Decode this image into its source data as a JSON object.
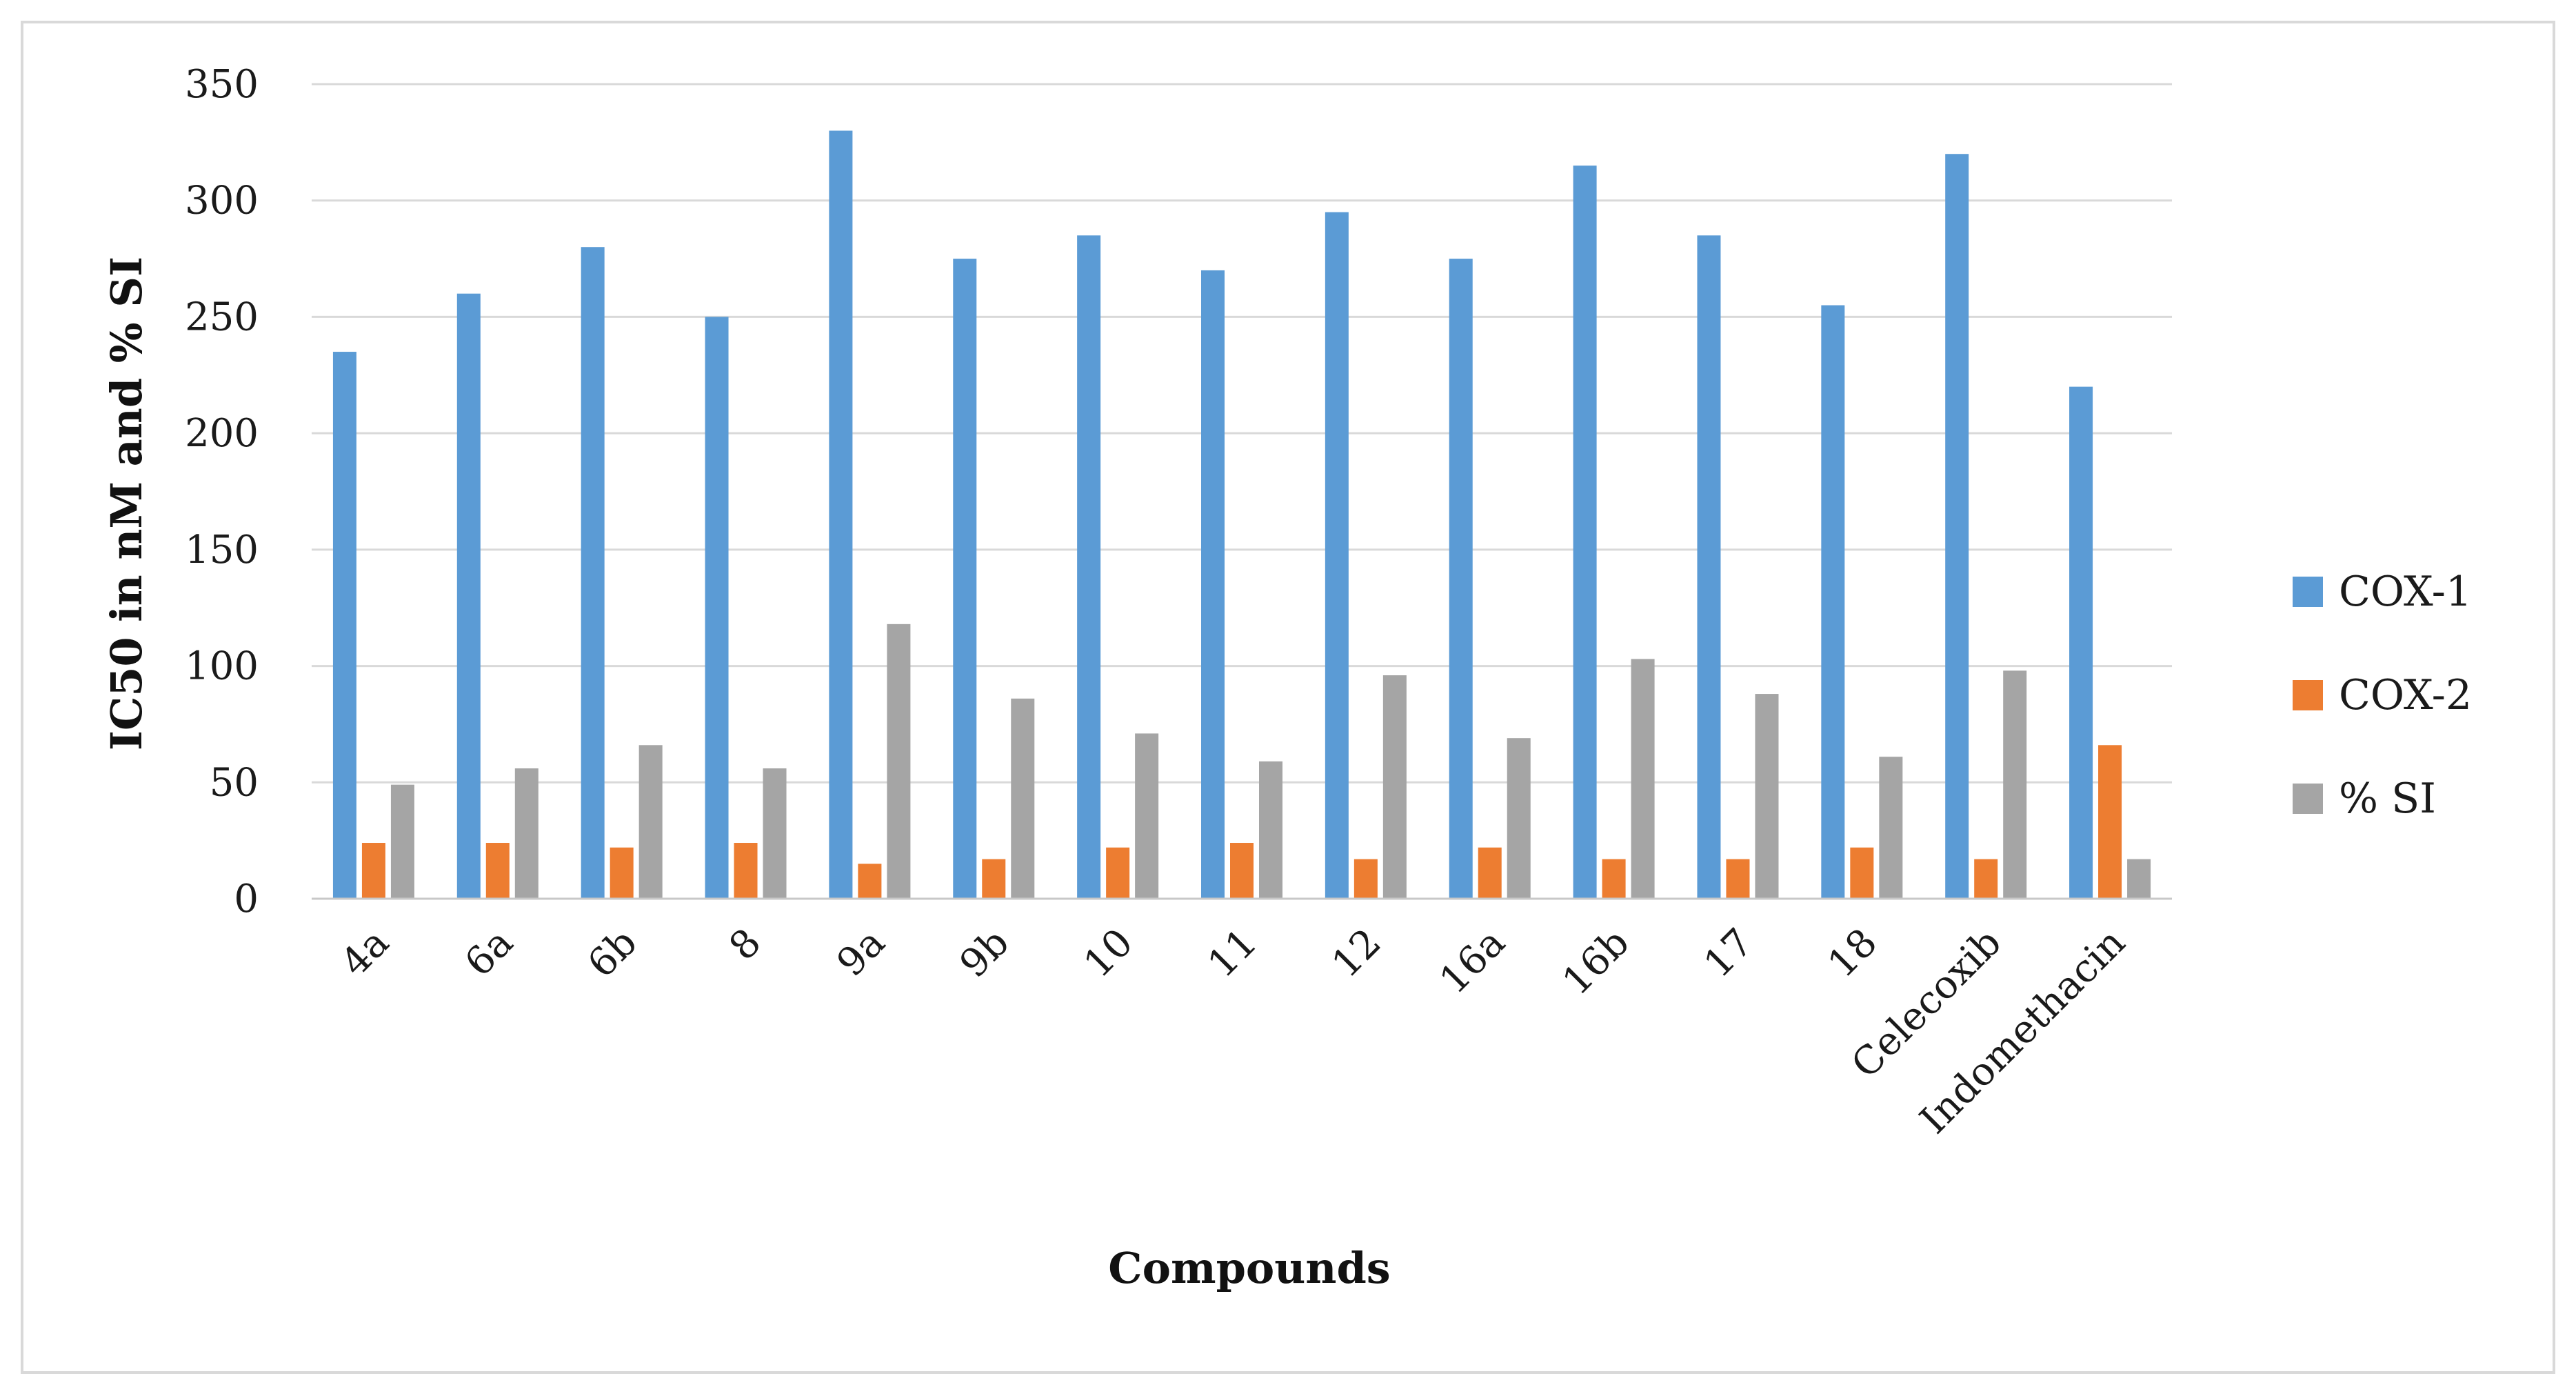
{
  "chart_data": {
    "type": "bar",
    "title": "",
    "xlabel": "Compounds",
    "ylabel": "IC50 in nM and % SI",
    "ylim": [
      0,
      350
    ],
    "yticks": [
      0,
      50,
      100,
      150,
      200,
      250,
      300,
      350
    ],
    "grid": true,
    "legend_position": "right",
    "categories": [
      "4a",
      "6a",
      "6b",
      "8",
      "9a",
      "9b",
      "10",
      "11",
      "12",
      "16a",
      "16b",
      "17",
      "18",
      "Celecoxib",
      "Indomethacin"
    ],
    "series": [
      {
        "name": "COX-1",
        "color": "#5b9bd5",
        "values": [
          235,
          260,
          280,
          250,
          330,
          275,
          285,
          270,
          295,
          275,
          315,
          285,
          255,
          320,
          220
        ]
      },
      {
        "name": "COX-2",
        "color": "#ed7d31",
        "values": [
          24,
          24,
          22,
          24,
          15,
          17,
          22,
          24,
          17,
          22,
          17,
          17,
          22,
          17,
          66
        ]
      },
      {
        "name": "% SI",
        "color": "#a5a5a5",
        "values": [
          49,
          56,
          66,
          56,
          118,
          86,
          71,
          59,
          96,
          69,
          103,
          88,
          61,
          98,
          17
        ]
      }
    ]
  }
}
